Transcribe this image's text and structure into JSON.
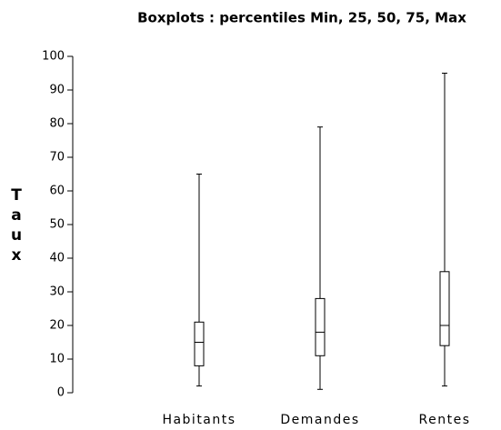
{
  "chart_data": {
    "type": "box",
    "title": "Boxplots : percentiles Min, 25, 50, 75, Max",
    "y_label": "Taux",
    "categories": [
      "Habitants",
      "Demandes",
      "Rentes"
    ],
    "min": [
      2,
      1,
      2
    ],
    "q1": [
      8,
      11,
      14
    ],
    "median": [
      15,
      18,
      20
    ],
    "q3": [
      21,
      28,
      36
    ],
    "max": [
      65,
      79,
      95
    ],
    "ylim": [
      0,
      100
    ],
    "yticks": [
      0,
      10,
      20,
      30,
      40,
      50,
      60,
      70,
      80,
      90,
      100
    ]
  }
}
